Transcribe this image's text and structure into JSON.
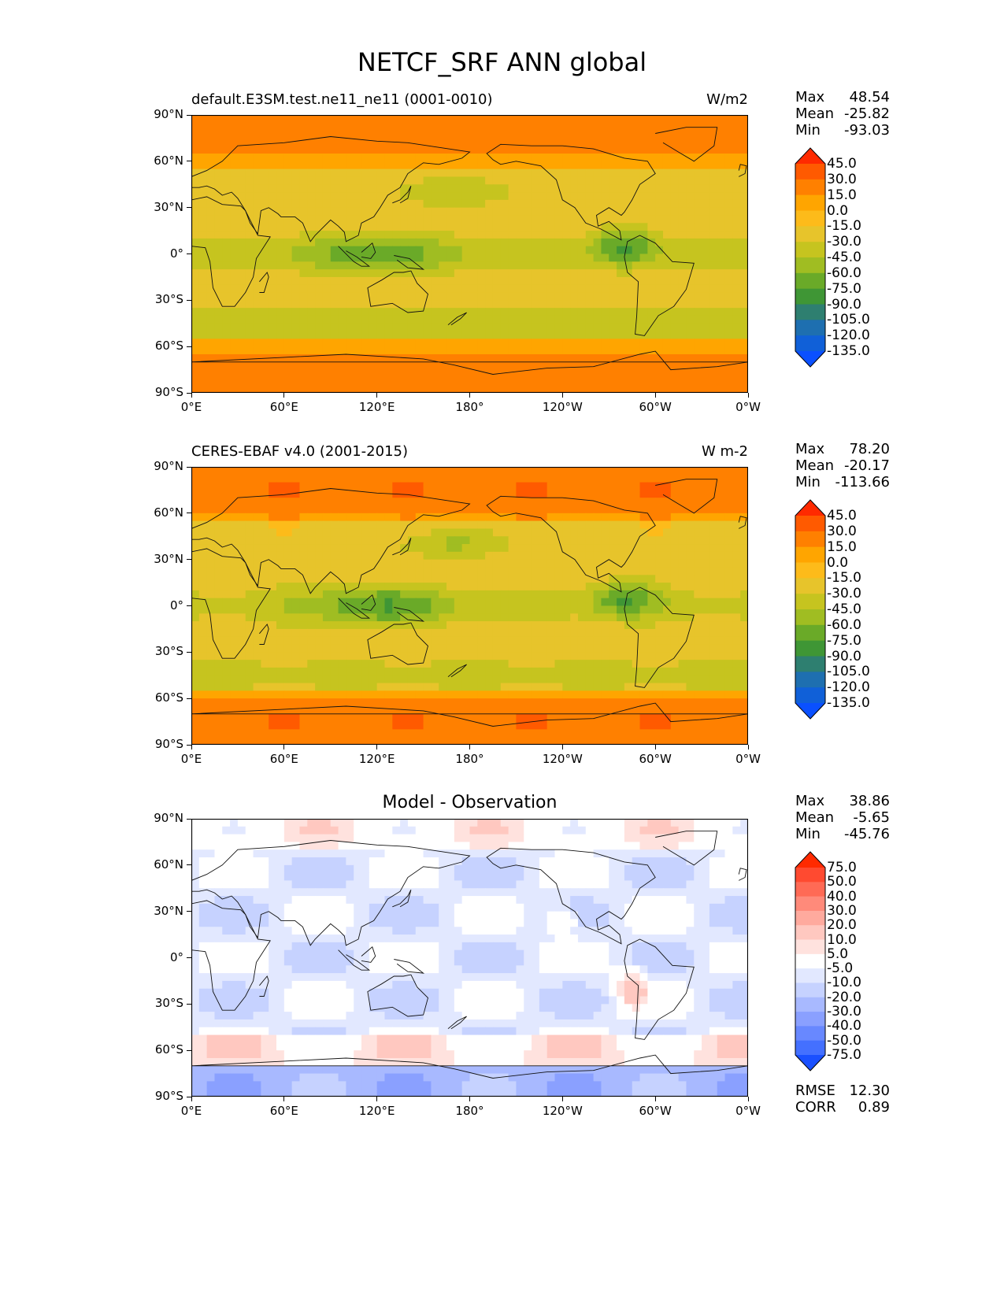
{
  "figure_title": "NETCF_SRF ANN global",
  "lat_ticks": [
    "90°N",
    "60°N",
    "30°N",
    "0°",
    "30°S",
    "60°S",
    "90°S"
  ],
  "lon_ticks": [
    "0°E",
    "60°E",
    "120°E",
    "180°",
    "120°W",
    "60°W",
    "0°W"
  ],
  "panels": [
    {
      "left_title": "default.E3SM.test.ne11_ne11 (0001-0010)",
      "center_title": "",
      "units": "W/m2",
      "stats": {
        "max_label": "Max",
        "max": "48.54",
        "mean_label": "Mean",
        "mean": "-25.82",
        "min_label": "Min",
        "min": "-93.03"
      },
      "levels": [
        "45.0",
        "30.0",
        "15.0",
        "0.0",
        "-15.0",
        "-30.0",
        "-45.0",
        "-60.0",
        "-75.0",
        "-90.0",
        "-105.0",
        "-120.0",
        "-135.0"
      ],
      "colorbar_colors": [
        "#ff2a00",
        "#ff5a00",
        "#ff8000",
        "#ffa500",
        "#fdbb1a",
        "#e7c42b",
        "#c6c41f",
        "#a0bd22",
        "#6aaa28",
        "#3f9635",
        "#2e7f70",
        "#1e6fb0",
        "#1060d8",
        "#0a50ff"
      ]
    },
    {
      "left_title": "CERES-EBAF v4.0 (2001-2015)",
      "center_title": "",
      "units": "W m-2",
      "stats": {
        "max_label": "Max",
        "max": "78.20",
        "mean_label": "Mean",
        "mean": "-20.17",
        "min_label": "Min",
        "min": "-113.66"
      },
      "levels": [
        "45.0",
        "30.0",
        "15.0",
        "0.0",
        "-15.0",
        "-30.0",
        "-45.0",
        "-60.0",
        "-75.0",
        "-90.0",
        "-105.0",
        "-120.0",
        "-135.0"
      ],
      "colorbar_colors": [
        "#ff2a00",
        "#ff5a00",
        "#ff8000",
        "#ffa500",
        "#fdbb1a",
        "#e7c42b",
        "#c6c41f",
        "#a0bd22",
        "#6aaa28",
        "#3f9635",
        "#2e7f70",
        "#1e6fb0",
        "#1060d8",
        "#0a50ff"
      ]
    },
    {
      "left_title": "",
      "center_title": "Model - Observation",
      "units": "",
      "stats": {
        "max_label": "Max",
        "max": "38.86",
        "mean_label": "Mean",
        "mean": "-5.65",
        "min_label": "Min",
        "min": "-45.76"
      },
      "levels": [
        "75.0",
        "50.0",
        "40.0",
        "30.0",
        "20.0",
        "10.0",
        "5.0",
        "-5.0",
        "-10.0",
        "-20.0",
        "-30.0",
        "-40.0",
        "-50.0",
        "-75.0"
      ],
      "colorbar_colors": [
        "#ff2a00",
        "#ff4a30",
        "#ff6a55",
        "#ff8a7a",
        "#ffaa9e",
        "#ffc8c0",
        "#ffe2de",
        "#ffffff",
        "#e2e8ff",
        "#c6d2ff",
        "#a8b9ff",
        "#8aa0ff",
        "#6888ff",
        "#4470ff",
        "#1a50ff"
      ],
      "rmse_label": "RMSE",
      "rmse": "12.30",
      "corr_label": "CORR",
      "corr": "0.89"
    }
  ],
  "chart_data": [
    {
      "type": "heatmap",
      "title": "default.E3SM.test.ne11_ne11 (0001-0010)",
      "units": "W/m2",
      "xlabel": "",
      "ylabel": "",
      "x_ticks": [
        "0°E",
        "60°E",
        "120°E",
        "180°",
        "120°W",
        "60°W",
        "0°W"
      ],
      "y_ticks": [
        "90°N",
        "60°N",
        "30°N",
        "0°",
        "30°S",
        "60°S",
        "90°S"
      ],
      "xlim": [
        0,
        360
      ],
      "ylim": [
        -90,
        90
      ],
      "levels": [
        -135,
        -120,
        -105,
        -90,
        -75,
        -60,
        -45,
        -30,
        -15,
        0,
        15,
        30,
        45
      ],
      "max": 48.54,
      "mean": -25.82,
      "min": -93.03,
      "grid": false
    },
    {
      "type": "heatmap",
      "title": "CERES-EBAF v4.0 (2001-2015)",
      "units": "W m-2",
      "xlabel": "",
      "ylabel": "",
      "x_ticks": [
        "0°E",
        "60°E",
        "120°E",
        "180°",
        "120°W",
        "60°W",
        "0°W"
      ],
      "y_ticks": [
        "90°N",
        "60°N",
        "30°N",
        "0°",
        "30°S",
        "60°S",
        "90°S"
      ],
      "xlim": [
        0,
        360
      ],
      "ylim": [
        -90,
        90
      ],
      "levels": [
        -135,
        -120,
        -105,
        -90,
        -75,
        -60,
        -45,
        -30,
        -15,
        0,
        15,
        30,
        45
      ],
      "max": 78.2,
      "mean": -20.17,
      "min": -113.66,
      "grid": false
    },
    {
      "type": "heatmap",
      "title": "Model - Observation",
      "xlabel": "",
      "ylabel": "",
      "x_ticks": [
        "0°E",
        "60°E",
        "120°E",
        "180°",
        "120°W",
        "60°W",
        "0°W"
      ],
      "y_ticks": [
        "90°N",
        "60°N",
        "30°N",
        "0°",
        "30°S",
        "60°S",
        "90°S"
      ],
      "xlim": [
        0,
        360
      ],
      "ylim": [
        -90,
        90
      ],
      "levels": [
        -75,
        -50,
        -40,
        -30,
        -20,
        -10,
        -5,
        5,
        10,
        20,
        30,
        40,
        50,
        75
      ],
      "max": 38.86,
      "mean": -5.65,
      "min": -45.76,
      "rmse": 12.3,
      "corr": 0.89,
      "grid": false
    }
  ]
}
